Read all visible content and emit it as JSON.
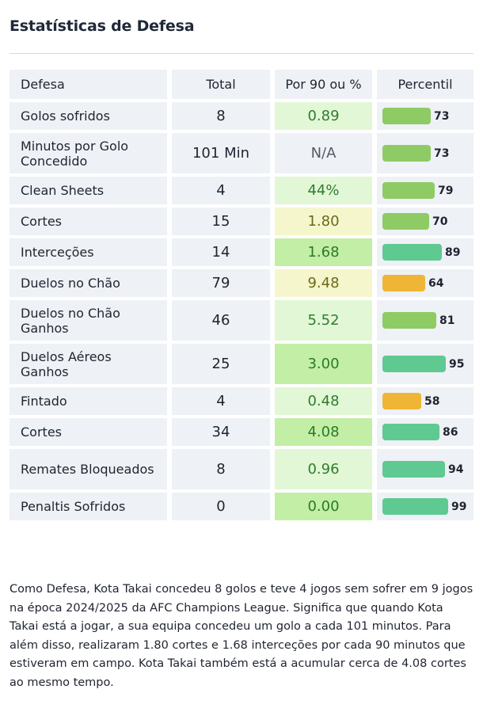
{
  "title": "Estatísticas de Defesa",
  "table": {
    "headers": {
      "name": "Defesa",
      "total": "Total",
      "per90": "Por 90 ou %",
      "percentile": "Percentil"
    },
    "rows": [
      {
        "name": "Golos sofridos",
        "total": "8",
        "per90": "0.89",
        "per90_level": "light",
        "percentile": 73,
        "percentile_label": "73",
        "bar_color": "green",
        "tall": false
      },
      {
        "name": "Minutos por Golo Concedido",
        "total": "101 Min",
        "per90": "N/A",
        "per90_level": "na",
        "percentile": 73,
        "percentile_label": "73",
        "bar_color": "green",
        "tall": true
      },
      {
        "name": "Clean Sheets",
        "total": "4",
        "per90": "44%",
        "per90_level": "light",
        "percentile": 79,
        "percentile_label": "79",
        "bar_color": "green",
        "tall": false
      },
      {
        "name": "Cortes",
        "total": "15",
        "per90": "1.80",
        "per90_level": "yellow",
        "percentile": 70,
        "percentile_label": "70",
        "bar_color": "green",
        "tall": false
      },
      {
        "name": "Interceções",
        "total": "14",
        "per90": "1.68",
        "per90_level": "mid",
        "percentile": 89,
        "percentile_label": "89",
        "bar_color": "teal",
        "tall": false
      },
      {
        "name": "Duelos no Chão",
        "total": "79",
        "per90": "9.48",
        "per90_level": "yellow",
        "percentile": 64,
        "percentile_label": "64",
        "bar_color": "amber",
        "tall": false
      },
      {
        "name": "Duelos no Chão Ganhos",
        "total": "46",
        "per90": "5.52",
        "per90_level": "light",
        "percentile": 81,
        "percentile_label": "81",
        "bar_color": "green",
        "tall": true
      },
      {
        "name": "Duelos Aéreos Ganhos",
        "total": "25",
        "per90": "3.00",
        "per90_level": "mid",
        "percentile": 95,
        "percentile_label": "95",
        "bar_color": "teal",
        "tall": true
      },
      {
        "name": "Fintado",
        "total": "4",
        "per90": "0.48",
        "per90_level": "light",
        "percentile": 58,
        "percentile_label": "58",
        "bar_color": "amber",
        "tall": false
      },
      {
        "name": "Cortes",
        "total": "34",
        "per90": "4.08",
        "per90_level": "mid",
        "percentile": 86,
        "percentile_label": "86",
        "bar_color": "teal",
        "tall": false
      },
      {
        "name": "Remates Bloqueados",
        "total": "8",
        "per90": "0.96",
        "per90_level": "light",
        "percentile": 94,
        "percentile_label": "94",
        "bar_color": "teal",
        "tall": true
      },
      {
        "name": "Penaltis Sofridos",
        "total": "0",
        "per90": "0.00",
        "per90_level": "mid",
        "percentile": 99,
        "percentile_label": "99",
        "bar_color": "teal",
        "tall": false
      }
    ]
  },
  "summary": "Como Defesa, Kota Takai concedeu 8 golos e teve 4 jogos sem sofrer em 9 jogos na época 2024/2025 da AFC Champions League. Significa que quando Kota Takai está a jogar, a sua equipa concedeu um golo a cada 101 minutos. Para além disso, realizaram 1.80 cortes e 1.68 interceções por cada 90 minutos que estiveram em campo. Kota Takai também está a acumular cerca de 4.08 cortes ao mesmo tempo."
}
